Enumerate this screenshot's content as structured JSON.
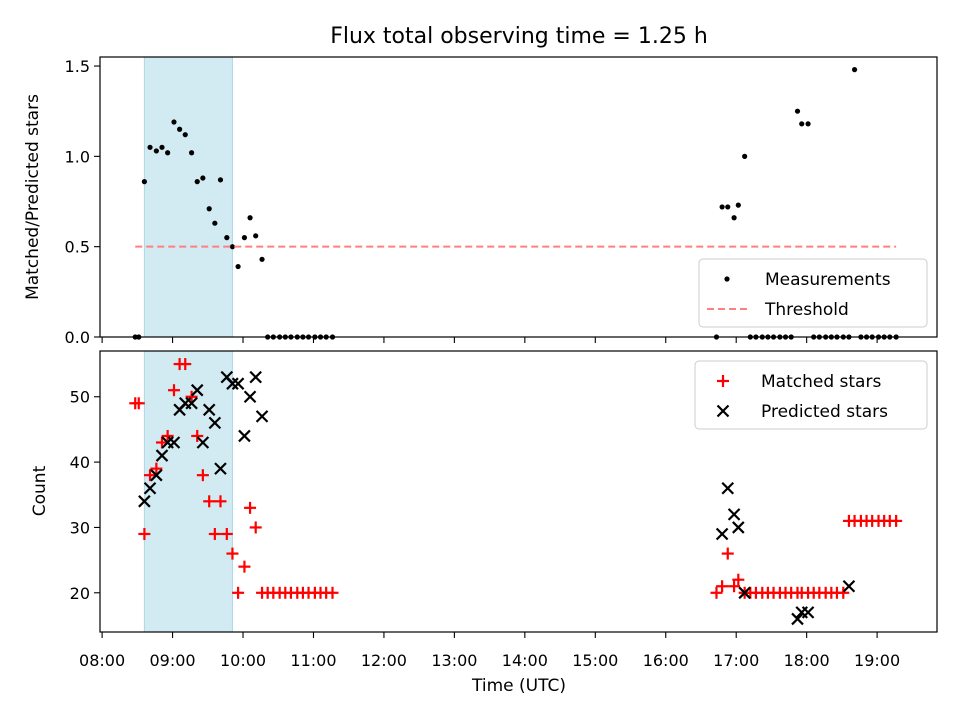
{
  "chart_data": {
    "title": "Flux total observing time = 1.25 h",
    "xlabel": "Time (UTC)",
    "x_ticks": [
      "08:00",
      "09:00",
      "10:00",
      "11:00",
      "12:00",
      "13:00",
      "14:00",
      "15:00",
      "16:00",
      "17:00",
      "18:00",
      "19:00"
    ],
    "x_range_hours": [
      7.97,
      19.85
    ],
    "shaded_span_hours": [
      8.6,
      9.85
    ],
    "colors": {
      "measurement": "#000000",
      "threshold": "#ff7f7f",
      "matched": "#ff0000",
      "predicted": "#000000",
      "span": "#add8e6"
    },
    "panels": [
      {
        "type": "scatter",
        "ylabel": "Matched/Predicted stars",
        "ylim": [
          0,
          1.55
        ],
        "y_ticks": [
          "0.0",
          "0.5",
          "1.0",
          "1.5"
        ],
        "legend_position": "lower-right",
        "series": [
          {
            "name": "Measurements",
            "marker": "dot",
            "x": [
              8.47,
              8.52,
              8.6,
              8.68,
              8.77,
              8.85,
              8.93,
              9.02,
              9.1,
              9.18,
              9.27,
              9.35,
              9.43,
              9.52,
              9.6,
              9.68,
              9.77,
              9.85,
              9.93,
              10.02,
              10.1,
              10.18,
              10.27,
              10.35,
              10.43,
              10.52,
              10.6,
              10.68,
              10.77,
              10.85,
              10.93,
              11.02,
              11.1,
              11.18,
              11.27,
              16.72,
              16.8,
              16.88,
              16.97,
              17.03,
              17.12,
              17.2,
              17.28,
              17.37,
              17.45,
              17.53,
              17.62,
              17.7,
              17.78,
              17.87,
              17.93,
              18.02,
              18.1,
              18.18,
              18.27,
              18.35,
              18.43,
              18.52,
              18.6,
              18.68,
              18.77,
              18.85,
              18.93,
              19.02,
              19.1,
              19.18,
              19.27
            ],
            "y": [
              0,
              0,
              0.86,
              1.05,
              1.03,
              1.05,
              1.02,
              1.19,
              1.15,
              1.12,
              1.02,
              0.86,
              0.88,
              0.71,
              0.63,
              0.87,
              0.55,
              0.5,
              0.39,
              0.55,
              0.66,
              0.56,
              0.43,
              0,
              0,
              0,
              0,
              0,
              0,
              0,
              0,
              0,
              0,
              0,
              0,
              0,
              0.72,
              0.72,
              0.66,
              0.73,
              1.0,
              0,
              0,
              0,
              0,
              0,
              0,
              0,
              0,
              1.25,
              1.18,
              1.18,
              0,
              0,
              0,
              0,
              0,
              0,
              0,
              1.48,
              0,
              0,
              0,
              0,
              0,
              0,
              0
            ]
          },
          {
            "name": "Threshold",
            "style": "dashed",
            "x": [
              8.47,
              19.27
            ],
            "y": [
              0.5,
              0.5
            ]
          }
        ]
      },
      {
        "type": "scatter",
        "ylabel": "Count",
        "ylim": [
          14,
          57
        ],
        "y_ticks": [
          "20",
          "30",
          "40",
          "50"
        ],
        "legend_position": "top-right",
        "series": [
          {
            "name": "Matched stars",
            "marker": "plus",
            "x": [
              8.47,
              8.52,
              8.6,
              8.68,
              8.77,
              8.85,
              8.93,
              9.02,
              9.1,
              9.18,
              9.27,
              9.35,
              9.43,
              9.52,
              9.6,
              9.68,
              9.77,
              9.85,
              9.93,
              10.02,
              10.1,
              10.18,
              10.27,
              10.35,
              10.43,
              10.52,
              10.6,
              10.68,
              10.77,
              10.85,
              10.93,
              11.02,
              11.1,
              11.18,
              11.27,
              16.72,
              16.8,
              16.88,
              16.97,
              17.03,
              17.12,
              17.2,
              17.28,
              17.37,
              17.45,
              17.53,
              17.62,
              17.7,
              17.78,
              17.87,
              17.93,
              18.02,
              18.1,
              18.18,
              18.27,
              18.35,
              18.43,
              18.52,
              18.6,
              18.68,
              18.77,
              18.85,
              18.93,
              19.02,
              19.1,
              19.18,
              19.27
            ],
            "y": [
              49,
              49,
              29,
              38,
              39,
              43,
              44,
              51,
              55,
              55,
              50,
              44,
              38,
              34,
              29,
              34,
              29,
              26,
              20,
              24,
              33,
              30,
              20,
              20,
              20,
              20,
              20,
              20,
              20,
              20,
              20,
              20,
              20,
              20,
              20,
              20,
              21,
              26,
              21,
              22,
              20,
              20,
              20,
              20,
              20,
              20,
              20,
              20,
              20,
              20,
              20,
              20,
              20,
              20,
              20,
              20,
              20,
              20,
              31,
              31,
              31,
              31,
              31,
              31,
              31,
              31,
              31
            ]
          },
          {
            "name": "Predicted stars",
            "marker": "x",
            "x": [
              8.6,
              8.68,
              8.77,
              8.85,
              8.93,
              9.02,
              9.1,
              9.18,
              9.27,
              9.35,
              9.43,
              9.52,
              9.6,
              9.68,
              9.77,
              9.85,
              9.93,
              10.02,
              10.1,
              10.18,
              10.27,
              16.8,
              16.88,
              16.97,
              17.03,
              17.12,
              17.87,
              17.93,
              18.02,
              18.6
            ],
            "y": [
              34,
              36,
              38,
              41,
              43,
              43,
              48,
              49,
              49,
              51,
              43,
              48,
              46,
              39,
              53,
              52,
              52,
              44,
              50,
              53,
              47,
              29,
              36,
              32,
              30,
              20,
              16,
              17,
              17,
              21
            ]
          }
        ]
      }
    ]
  }
}
